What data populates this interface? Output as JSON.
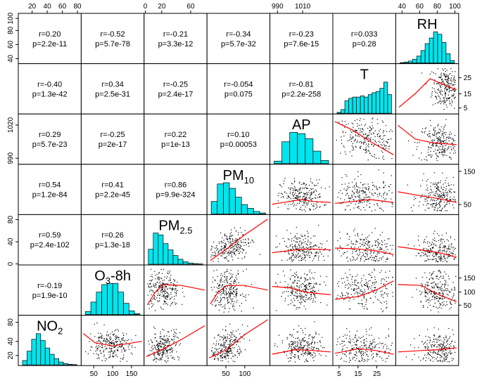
{
  "chart_data": {
    "type": "scatter",
    "variables": [
      {
        "key": "NO2",
        "name": "NO",
        "sub": "2",
        "range": [
          0,
          90
        ],
        "ticks": [
          20,
          40,
          60,
          80
        ]
      },
      {
        "key": "O3",
        "name": "O",
        "sub": "3",
        "suffix": "-8h",
        "range": [
          0,
          230
        ],
        "ticks": [
          50,
          100,
          150
        ]
      },
      {
        "key": "PM25",
        "name": "PM",
        "sub": "2.5",
        "range": [
          0,
          100
        ],
        "ticks": [
          0,
          20,
          40,
          60
        ]
      },
      {
        "key": "PM10",
        "name": "PM",
        "sub": "10",
        "range": [
          0,
          160
        ],
        "ticks": [
          50,
          100,
          150
        ]
      },
      {
        "key": "AP",
        "name": "AP",
        "sub": "",
        "range": [
          985,
          1035
        ],
        "ticks": [
          990,
          1010
        ]
      },
      {
        "key": "T",
        "name": "T",
        "sub": "",
        "range": [
          0,
          35
        ],
        "ticks": [
          5,
          15,
          25
        ]
      },
      {
        "key": "RH",
        "name": "RH",
        "sub": "",
        "range": [
          30,
          100
        ],
        "ticks": [
          40,
          60,
          80,
          100
        ]
      }
    ],
    "correlations": [
      {
        "row": 0,
        "col": 1,
        "r": "r=-0.52",
        "p": "p=5.7e-78"
      },
      {
        "row": 0,
        "col": 2,
        "r": "r=-0.21",
        "p": "p=3.3e-12"
      },
      {
        "row": 0,
        "col": 3,
        "r": "r=-0.34",
        "p": "p=5.7e-32"
      },
      {
        "row": 0,
        "col": 4,
        "r": "r=-0.23",
        "p": "p=7.6e-15"
      },
      {
        "row": 0,
        "col": 5,
        "r": "r=0.033",
        "p": "p=0.28"
      },
      {
        "row": 0,
        "col": 0,
        "r": "r=0.20",
        "p": "p=2.2e-11"
      },
      {
        "row": 1,
        "col": 0,
        "r": "r=-0.40",
        "p": "p=1.3e-42"
      },
      {
        "row": 1,
        "col": 1,
        "r": "r=0.34",
        "p": "p=2.5e-31"
      },
      {
        "row": 1,
        "col": 2,
        "r": "r=-0.25",
        "p": "p=2.4e-17"
      },
      {
        "row": 1,
        "col": 3,
        "r": "r=-0.054",
        "p": "p=0.075"
      },
      {
        "row": 1,
        "col": 4,
        "r": "r=-0.81",
        "p": "p=2.2e-258"
      },
      {
        "row": 2,
        "col": 0,
        "r": "r=0.29",
        "p": "p=5.7e-23"
      },
      {
        "row": 2,
        "col": 1,
        "r": "r=-0.25",
        "p": "p=2e-17"
      },
      {
        "row": 2,
        "col": 2,
        "r": "r=0.22",
        "p": "p=1e-13"
      },
      {
        "row": 2,
        "col": 3,
        "r": "r=0.10",
        "p": "p=0.00053"
      },
      {
        "row": 3,
        "col": 0,
        "r": "r=0.54",
        "p": "p=1.2e-84"
      },
      {
        "row": 3,
        "col": 1,
        "r": "r=0.41",
        "p": "p=2.2e-45"
      },
      {
        "row": 3,
        "col": 2,
        "r": "r=0.86",
        "p": "p=9.9e-324"
      },
      {
        "row": 4,
        "col": 0,
        "r": "r=0.59",
        "p": "p=2.4e-102"
      },
      {
        "row": 4,
        "col": 1,
        "r": "r=0.26",
        "p": "p=1.3e-18"
      },
      {
        "row": 5,
        "col": 0,
        "r": "r=-0.19",
        "p": "p=1.9e-10"
      }
    ],
    "diagonal": [
      {
        "row": 0,
        "col": 6,
        "var": "RH",
        "hist": [
          1,
          3,
          6,
          12,
          22,
          40,
          62,
          80,
          100,
          92,
          66,
          30,
          8
        ]
      },
      {
        "row": 1,
        "col": 5,
        "var": "T",
        "hist": [
          3,
          12,
          40,
          48,
          52,
          52,
          56,
          52,
          60,
          66,
          70,
          80,
          100,
          60
        ]
      },
      {
        "row": 2,
        "col": 4,
        "var": "AP",
        "hist": [
          8,
          70,
          100,
          96,
          80,
          40,
          10
        ]
      },
      {
        "row": 3,
        "col": 3,
        "var": "PM10",
        "hist": [
          40,
          96,
          100,
          82,
          54,
          30,
          18,
          8,
          3
        ]
      },
      {
        "row": 4,
        "col": 2,
        "var": "PM25",
        "hist": [
          48,
          100,
          94,
          66,
          46,
          28,
          16,
          8,
          4,
          2,
          1
        ]
      },
      {
        "row": 5,
        "col": 1,
        "var": "O3",
        "hist": [
          10,
          40,
          72,
          96,
          100,
          100,
          72,
          36,
          12,
          3
        ]
      },
      {
        "row": 6,
        "col": 0,
        "var": "NO2",
        "hist": [
          14,
          44,
          82,
          100,
          78,
          54,
          34,
          20,
          9,
          4,
          2,
          1
        ]
      }
    ],
    "scatter_panels": [
      {
        "row": 1,
        "col": 6,
        "cx": 0.82,
        "cy": 0.55,
        "sx": 0.12,
        "sy": 0.26,
        "trend": [
          [
            0.02,
            0.1
          ],
          [
            0.3,
            0.4
          ],
          [
            0.55,
            0.72
          ],
          [
            0.8,
            0.58
          ],
          [
            1.0,
            0.48
          ]
        ]
      },
      {
        "row": 2,
        "col": 5,
        "cx": 0.55,
        "cy": 0.5,
        "sx": 0.28,
        "sy": 0.2,
        "slope": -0.7,
        "trend": [
          [
            0.0,
            0.88
          ],
          [
            0.3,
            0.7
          ],
          [
            0.6,
            0.45
          ],
          [
            1.0,
            0.16
          ]
        ]
      },
      {
        "row": 2,
        "col": 6,
        "cx": 0.7,
        "cy": 0.42,
        "sx": 0.18,
        "sy": 0.22,
        "trend": [
          [
            0.0,
            0.8
          ],
          [
            0.3,
            0.5
          ],
          [
            0.6,
            0.42
          ],
          [
            1.0,
            0.38
          ]
        ]
      },
      {
        "row": 3,
        "col": 4,
        "cx": 0.5,
        "cy": 0.35,
        "sx": 0.18,
        "sy": 0.18,
        "trend": [
          [
            0.0,
            0.18
          ],
          [
            0.3,
            0.24
          ],
          [
            0.5,
            0.28
          ],
          [
            0.7,
            0.24
          ],
          [
            1.0,
            0.22
          ]
        ]
      },
      {
        "row": 3,
        "col": 5,
        "cx": 0.5,
        "cy": 0.35,
        "sx": 0.28,
        "sy": 0.2,
        "trend": [
          [
            0.0,
            0.2
          ],
          [
            0.3,
            0.24
          ],
          [
            0.6,
            0.28
          ],
          [
            1.0,
            0.22
          ]
        ]
      },
      {
        "row": 3,
        "col": 6,
        "cx": 0.7,
        "cy": 0.35,
        "sx": 0.18,
        "sy": 0.2,
        "trend": [
          [
            0.0,
            0.45
          ],
          [
            0.4,
            0.36
          ],
          [
            0.7,
            0.3
          ],
          [
            1.0,
            0.22
          ]
        ]
      },
      {
        "row": 4,
        "col": 3,
        "cx": 0.35,
        "cy": 0.35,
        "sx": 0.18,
        "sy": 0.18,
        "slope": 0.9,
        "trend": [
          [
            0.02,
            0.05
          ],
          [
            0.3,
            0.3
          ],
          [
            0.6,
            0.6
          ],
          [
            1.0,
            0.95
          ]
        ]
      },
      {
        "row": 4,
        "col": 4,
        "cx": 0.5,
        "cy": 0.28,
        "sx": 0.18,
        "sy": 0.2,
        "trend": [
          [
            0.0,
            0.22
          ],
          [
            0.4,
            0.28
          ],
          [
            0.7,
            0.3
          ],
          [
            1.0,
            0.28
          ]
        ]
      },
      {
        "row": 4,
        "col": 5,
        "cx": 0.5,
        "cy": 0.28,
        "sx": 0.28,
        "sy": 0.2,
        "trend": [
          [
            0.0,
            0.32
          ],
          [
            0.4,
            0.3
          ],
          [
            0.7,
            0.26
          ],
          [
            1.0,
            0.18
          ]
        ]
      },
      {
        "row": 4,
        "col": 6,
        "cx": 0.7,
        "cy": 0.25,
        "sx": 0.18,
        "sy": 0.18,
        "trend": [
          [
            0.0,
            0.35
          ],
          [
            0.4,
            0.28
          ],
          [
            0.7,
            0.22
          ],
          [
            1.0,
            0.12
          ]
        ]
      },
      {
        "row": 5,
        "col": 2,
        "cx": 0.28,
        "cy": 0.5,
        "sx": 0.14,
        "sy": 0.22,
        "trend": [
          [
            0.02,
            0.18
          ],
          [
            0.15,
            0.45
          ],
          [
            0.3,
            0.62
          ],
          [
            0.6,
            0.6
          ],
          [
            1.0,
            0.5
          ]
        ]
      },
      {
        "row": 5,
        "col": 3,
        "cx": 0.3,
        "cy": 0.5,
        "sx": 0.14,
        "sy": 0.22,
        "trend": [
          [
            0.02,
            0.2
          ],
          [
            0.15,
            0.45
          ],
          [
            0.3,
            0.6
          ],
          [
            0.6,
            0.6
          ],
          [
            1.0,
            0.5
          ]
        ]
      },
      {
        "row": 5,
        "col": 4,
        "cx": 0.5,
        "cy": 0.5,
        "sx": 0.18,
        "sy": 0.22,
        "trend": [
          [
            0.0,
            0.58
          ],
          [
            0.3,
            0.55
          ],
          [
            0.6,
            0.45
          ],
          [
            1.0,
            0.4
          ]
        ]
      },
      {
        "row": 5,
        "col": 5,
        "cx": 0.5,
        "cy": 0.5,
        "sx": 0.28,
        "sy": 0.22,
        "trend": [
          [
            0.0,
            0.3
          ],
          [
            0.4,
            0.36
          ],
          [
            0.7,
            0.5
          ],
          [
            1.0,
            0.7
          ]
        ]
      },
      {
        "row": 5,
        "col": 6,
        "cx": 0.7,
        "cy": 0.5,
        "sx": 0.18,
        "sy": 0.22,
        "trend": [
          [
            0.0,
            0.62
          ],
          [
            0.4,
            0.6
          ],
          [
            0.7,
            0.4
          ],
          [
            1.0,
            0.25
          ]
        ]
      },
      {
        "row": 6,
        "col": 1,
        "cx": 0.45,
        "cy": 0.4,
        "sx": 0.18,
        "sy": 0.16,
        "trend": [
          [
            0.0,
            0.65
          ],
          [
            0.2,
            0.45
          ],
          [
            0.5,
            0.38
          ],
          [
            1.0,
            0.48
          ]
        ]
      },
      {
        "row": 6,
        "col": 2,
        "cx": 0.28,
        "cy": 0.35,
        "sx": 0.14,
        "sy": 0.18,
        "slope": 0.6,
        "trend": [
          [
            0.0,
            0.15
          ],
          [
            0.3,
            0.32
          ],
          [
            0.6,
            0.52
          ],
          [
            1.0,
            0.82
          ]
        ]
      },
      {
        "row": 6,
        "col": 3,
        "cx": 0.3,
        "cy": 0.35,
        "sx": 0.14,
        "sy": 0.18,
        "slope": 0.7,
        "trend": [
          [
            0.0,
            0.12
          ],
          [
            0.3,
            0.3
          ],
          [
            0.6,
            0.62
          ],
          [
            1.0,
            0.95
          ]
        ]
      },
      {
        "row": 6,
        "col": 4,
        "cx": 0.5,
        "cy": 0.32,
        "sx": 0.18,
        "sy": 0.18,
        "trend": [
          [
            0.0,
            0.2
          ],
          [
            0.4,
            0.3
          ],
          [
            0.7,
            0.28
          ],
          [
            1.0,
            0.25
          ]
        ]
      },
      {
        "row": 6,
        "col": 5,
        "cx": 0.5,
        "cy": 0.32,
        "sx": 0.28,
        "sy": 0.18,
        "trend": [
          [
            0.0,
            0.22
          ],
          [
            0.4,
            0.32
          ],
          [
            0.7,
            0.28
          ],
          [
            1.0,
            0.2
          ]
        ]
      },
      {
        "row": 6,
        "col": 6,
        "cx": 0.7,
        "cy": 0.32,
        "sx": 0.18,
        "sy": 0.18,
        "trend": [
          [
            0.0,
            0.25
          ],
          [
            0.4,
            0.28
          ],
          [
            0.7,
            0.3
          ],
          [
            1.0,
            0.34
          ]
        ]
      }
    ],
    "top_axis": [
      {
        "col": 0,
        "labels": [
          {
            "text": "20",
            "pos": 0.22
          },
          {
            "text": "40",
            "pos": 0.46
          },
          {
            "text": "60",
            "pos": 0.7
          },
          {
            "text": "80",
            "pos": 0.94
          }
        ]
      },
      {
        "col": 2,
        "labels": [
          {
            "text": "0",
            "pos": 0.02
          },
          {
            "text": "20",
            "pos": 0.28
          },
          {
            "text": "60",
            "pos": 0.74
          }
        ]
      },
      {
        "col": 4,
        "labels": [
          {
            "text": "990",
            "pos": 0.12
          },
          {
            "text": "1010",
            "pos": 0.52
          }
        ]
      },
      {
        "col": 6,
        "labels": [
          {
            "text": "40",
            "pos": 0.1
          },
          {
            "text": "60",
            "pos": 0.38
          },
          {
            "text": "80",
            "pos": 0.66
          },
          {
            "text": "100",
            "pos": 0.94
          }
        ]
      }
    ],
    "bottom_axis": [
      {
        "col": 1,
        "labels": [
          {
            "text": "50",
            "pos": 0.2
          },
          {
            "text": "100",
            "pos": 0.5
          },
          {
            "text": "150",
            "pos": 0.8
          }
        ]
      },
      {
        "col": 3,
        "labels": [
          {
            "text": "50",
            "pos": 0.3
          },
          {
            "text": "100",
            "pos": 0.6
          }
        ]
      },
      {
        "col": 5,
        "labels": [
          {
            "text": "5",
            "pos": 0.1
          },
          {
            "text": "15",
            "pos": 0.4
          },
          {
            "text": "25",
            "pos": 0.7
          }
        ]
      }
    ],
    "left_axis": [
      {
        "row": 0,
        "labels": [
          {
            "text": "40",
            "pos": 0.1
          },
          {
            "text": "60",
            "pos": 0.38
          },
          {
            "text": "80",
            "pos": 0.66
          },
          {
            "text": "100",
            "pos": 0.9
          }
        ]
      },
      {
        "row": 2,
        "labels": [
          {
            "text": "990",
            "pos": 0.12
          },
          {
            "text": "1020",
            "pos": 0.78
          }
        ]
      },
      {
        "row": 4,
        "labels": [
          {
            "text": "0",
            "pos": 0.02
          },
          {
            "text": "40",
            "pos": 0.46
          },
          {
            "text": "80",
            "pos": 0.9
          }
        ]
      },
      {
        "row": 6,
        "labels": [
          {
            "text": "20",
            "pos": 0.2
          },
          {
            "text": "40",
            "pos": 0.48
          },
          {
            "text": "80",
            "pos": 0.86
          }
        ]
      }
    ],
    "right_axis": [
      {
        "row": 1,
        "labels": [
          {
            "text": "5",
            "pos": 0.12
          },
          {
            "text": "15",
            "pos": 0.4
          },
          {
            "text": "25",
            "pos": 0.72
          }
        ]
      },
      {
        "row": 3,
        "labels": [
          {
            "text": "50",
            "pos": 0.2
          },
          {
            "text": "150",
            "pos": 0.86
          }
        ]
      },
      {
        "row": 5,
        "labels": [
          {
            "text": "50",
            "pos": 0.2
          },
          {
            "text": "100",
            "pos": 0.46
          },
          {
            "text": "150",
            "pos": 0.74
          }
        ]
      }
    ]
  }
}
